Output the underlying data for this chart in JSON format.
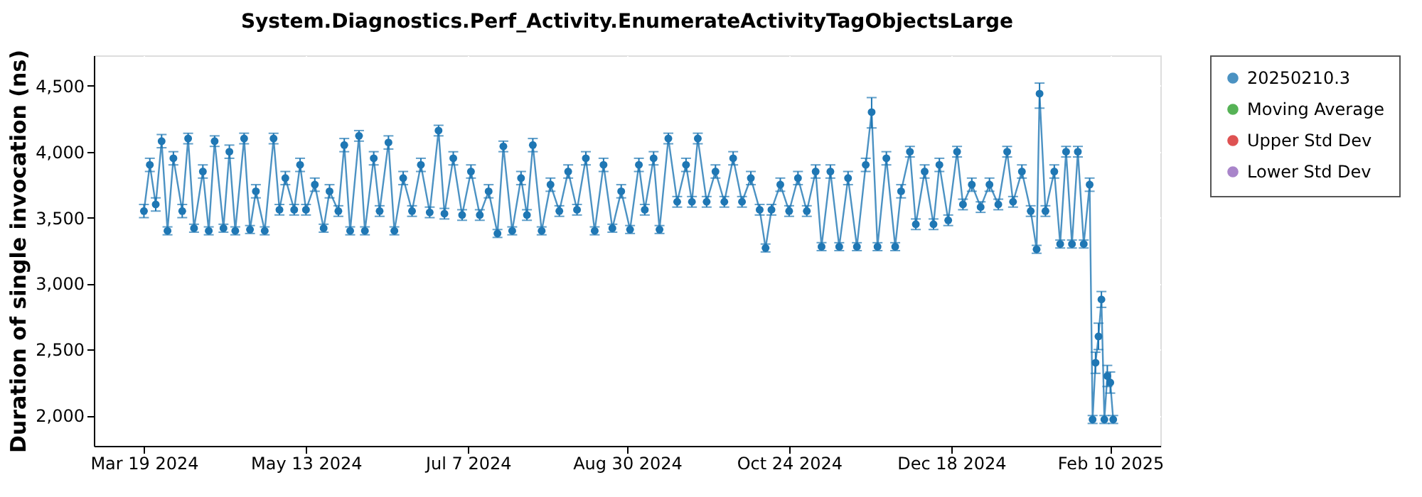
{
  "chart_data": {
    "type": "line",
    "title": "System.Diagnostics.Perf_Activity.EnumerateActivityTagObjectsLarge",
    "ylabel": "Duration of single invocation (ns)",
    "x": [
      "2024-03-19",
      "2024-03-21",
      "2024-03-23",
      "2024-03-25",
      "2024-03-27",
      "2024-03-29",
      "2024-04-01",
      "2024-04-03",
      "2024-04-05",
      "2024-04-08",
      "2024-04-10",
      "2024-04-12",
      "2024-04-15",
      "2024-04-17",
      "2024-04-19",
      "2024-04-22",
      "2024-04-24",
      "2024-04-26",
      "2024-04-29",
      "2024-05-02",
      "2024-05-04",
      "2024-05-06",
      "2024-05-09",
      "2024-05-11",
      "2024-05-13",
      "2024-05-16",
      "2024-05-19",
      "2024-05-21",
      "2024-05-24",
      "2024-05-26",
      "2024-05-28",
      "2024-05-31",
      "2024-06-02",
      "2024-06-05",
      "2024-06-07",
      "2024-06-10",
      "2024-06-12",
      "2024-06-15",
      "2024-06-18",
      "2024-06-21",
      "2024-06-24",
      "2024-06-27",
      "2024-06-29",
      "2024-07-02",
      "2024-07-05",
      "2024-07-08",
      "2024-07-11",
      "2024-07-14",
      "2024-07-17",
      "2024-07-19",
      "2024-07-22",
      "2024-07-25",
      "2024-07-27",
      "2024-07-29",
      "2024-08-01",
      "2024-08-04",
      "2024-08-07",
      "2024-08-10",
      "2024-08-13",
      "2024-08-16",
      "2024-08-19",
      "2024-08-22",
      "2024-08-25",
      "2024-08-28",
      "2024-08-31",
      "2024-09-03",
      "2024-09-05",
      "2024-09-08",
      "2024-09-10",
      "2024-09-13",
      "2024-09-16",
      "2024-09-19",
      "2024-09-21",
      "2024-09-23",
      "2024-09-26",
      "2024-09-29",
      "2024-10-02",
      "2024-10-05",
      "2024-10-08",
      "2024-10-11",
      "2024-10-14",
      "2024-10-16",
      "2024-10-18",
      "2024-10-21",
      "2024-10-24",
      "2024-10-27",
      "2024-10-30",
      "2024-11-02",
      "2024-11-04",
      "2024-11-07",
      "2024-11-10",
      "2024-11-13",
      "2024-11-16",
      "2024-11-19",
      "2024-11-21",
      "2024-11-23",
      "2024-11-26",
      "2024-11-29",
      "2024-12-01",
      "2024-12-04",
      "2024-12-06",
      "2024-12-09",
      "2024-12-12",
      "2024-12-14",
      "2024-12-17",
      "2024-12-20",
      "2024-12-22",
      "2024-12-25",
      "2024-12-28",
      "2024-12-31",
      "2025-01-03",
      "2025-01-06",
      "2025-01-08",
      "2025-01-11",
      "2025-01-14",
      "2025-01-16",
      "2025-01-17",
      "2025-01-19",
      "2025-01-22",
      "2025-01-24",
      "2025-01-26",
      "2025-01-28",
      "2025-01-30",
      "2025-02-01",
      "2025-02-03",
      "2025-02-04",
      "2025-02-05",
      "2025-02-06",
      "2025-02-07",
      "2025-02-08",
      "2025-02-09",
      "2025-02-10",
      "2025-02-11"
    ],
    "series": [
      {
        "name": "20250210.3",
        "color": "#1f77b4",
        "values": [
          3550,
          3900,
          3600,
          4080,
          3400,
          3950,
          3550,
          4100,
          3420,
          3850,
          3400,
          4080,
          3420,
          4000,
          3400,
          4100,
          3410,
          3700,
          3400,
          4100,
          3560,
          3800,
          3560,
          3900,
          3560,
          3750,
          3420,
          3700,
          3550,
          4050,
          3400,
          4120,
          3400,
          3950,
          3550,
          4070,
          3400,
          3800,
          3550,
          3900,
          3540,
          4160,
          3530,
          3950,
          3520,
          3850,
          3520,
          3700,
          3380,
          4040,
          3400,
          3800,
          3520,
          4050,
          3400,
          3750,
          3550,
          3850,
          3560,
          3950,
          3400,
          3900,
          3420,
          3700,
          3410,
          3900,
          3560,
          3950,
          3410,
          4100,
          3620,
          3900,
          3620,
          4100,
          3620,
          3850,
          3620,
          3950,
          3620,
          3800,
          3560,
          3270,
          3560,
          3750,
          3550,
          3800,
          3550,
          3850,
          3280,
          3850,
          3280,
          3800,
          3280,
          3900,
          4300,
          3280,
          3950,
          3280,
          3700,
          4000,
          3450,
          3850,
          3450,
          3900,
          3480,
          4000,
          3600,
          3750,
          3580,
          3750,
          3600,
          4000,
          3620,
          3850,
          3550,
          3260,
          4440,
          3550,
          3850,
          3300,
          4000,
          3300,
          4000,
          3300,
          3750,
          1970,
          2400,
          2600,
          2880,
          1970,
          2300,
          2250,
          1970
        ],
        "errors": [
          50,
          50,
          50,
          50,
          30,
          50,
          50,
          40,
          30,
          50,
          30,
          40,
          30,
          50,
          30,
          40,
          30,
          50,
          30,
          40,
          40,
          50,
          40,
          50,
          40,
          50,
          30,
          50,
          40,
          50,
          30,
          40,
          30,
          50,
          40,
          50,
          30,
          50,
          40,
          50,
          40,
          40,
          40,
          50,
          40,
          50,
          40,
          50,
          30,
          40,
          30,
          50,
          40,
          50,
          30,
          50,
          40,
          50,
          40,
          50,
          30,
          50,
          30,
          50,
          30,
          50,
          40,
          50,
          30,
          40,
          40,
          50,
          40,
          40,
          40,
          50,
          40,
          50,
          40,
          50,
          40,
          30,
          40,
          50,
          40,
          50,
          40,
          50,
          30,
          50,
          30,
          50,
          30,
          50,
          [
            4180,
            4410
          ],
          30,
          50,
          30,
          50,
          40,
          40,
          50,
          40,
          50,
          40,
          40,
          40,
          50,
          40,
          50,
          40,
          40,
          40,
          50,
          40,
          30,
          [
            4330,
            4520
          ],
          40,
          50,
          30,
          40,
          30,
          40,
          30,
          50,
          30,
          80,
          100,
          60,
          30,
          80,
          80,
          30
        ]
      },
      {
        "name": "Moving Average",
        "color": "#2ca02c",
        "values": [
          null,
          null,
          null,
          null,
          null,
          null,
          null,
          null,
          null,
          null,
          null,
          null,
          null,
          null,
          null,
          null,
          null,
          null,
          null,
          null,
          null,
          null,
          null,
          null,
          null,
          null,
          null,
          null,
          null,
          null,
          null,
          null,
          null,
          null,
          null,
          null,
          null,
          null,
          null,
          null,
          null,
          null,
          null,
          null,
          null,
          null,
          null,
          null,
          null,
          null,
          null,
          null,
          null,
          null,
          null,
          null,
          null,
          null,
          null,
          null,
          null,
          null,
          null,
          null,
          null,
          null,
          null,
          null,
          null,
          null,
          null,
          null,
          null,
          null,
          null,
          null,
          null,
          null,
          null,
          null,
          null,
          null,
          null,
          null,
          null,
          null,
          null,
          null,
          null,
          null,
          null,
          null,
          null,
          null,
          null,
          null,
          null,
          null,
          null,
          null,
          null,
          null,
          null,
          null,
          null,
          null,
          null,
          null,
          null,
          null,
          null,
          null,
          null,
          null,
          null,
          null,
          null,
          null,
          null,
          null,
          null,
          null,
          null,
          null,
          null,
          null,
          null,
          null,
          null,
          null,
          null,
          null,
          null
        ]
      },
      {
        "name": "Upper Std Dev",
        "color": "#d62728",
        "values": [
          null,
          null,
          null,
          null,
          null,
          null,
          null,
          null,
          null,
          null,
          null,
          null,
          null,
          null,
          null,
          null,
          null,
          null,
          null,
          null,
          null,
          null,
          null,
          null,
          null,
          null,
          null,
          null,
          null,
          null,
          null,
          null,
          null,
          null,
          null,
          null,
          null,
          null,
          null,
          null,
          null,
          null,
          null,
          null,
          null,
          null,
          null,
          null,
          null,
          null,
          null,
          null,
          null,
          null,
          null,
          null,
          null,
          null,
          null,
          null,
          null,
          null,
          null,
          null,
          null,
          null,
          null,
          null,
          null,
          null,
          null,
          null,
          null,
          null,
          null,
          null,
          null,
          null,
          null,
          null,
          null,
          null,
          null,
          null,
          null,
          null,
          null,
          null,
          null,
          null,
          null,
          null,
          null,
          null,
          null,
          null,
          null,
          null,
          null,
          null,
          null,
          null,
          null,
          null,
          null,
          null,
          null,
          null,
          null,
          null,
          null,
          null,
          null,
          null,
          null,
          null,
          null,
          null,
          null,
          null,
          null,
          null,
          null,
          null,
          null,
          null,
          null,
          null,
          null,
          null,
          null,
          null,
          null
        ]
      },
      {
        "name": "Lower Std Dev",
        "color": "#9467bd",
        "values": [
          null,
          null,
          null,
          null,
          null,
          null,
          null,
          null,
          null,
          null,
          null,
          null,
          null,
          null,
          null,
          null,
          null,
          null,
          null,
          null,
          null,
          null,
          null,
          null,
          null,
          null,
          null,
          null,
          null,
          null,
          null,
          null,
          null,
          null,
          null,
          null,
          null,
          null,
          null,
          null,
          null,
          null,
          null,
          null,
          null,
          null,
          null,
          null,
          null,
          null,
          null,
          null,
          null,
          null,
          null,
          null,
          null,
          null,
          null,
          null,
          null,
          null,
          null,
          null,
          null,
          null,
          null,
          null,
          null,
          null,
          null,
          null,
          null,
          null,
          null,
          null,
          null,
          null,
          null,
          null,
          null,
          null,
          null,
          null,
          null,
          null,
          null,
          null,
          null,
          null,
          null,
          null,
          null,
          null,
          null,
          null,
          null,
          null,
          null,
          null,
          null,
          null,
          null,
          null,
          null,
          null,
          null,
          null,
          null,
          null,
          null,
          null,
          null,
          null,
          null,
          null,
          null,
          null,
          null,
          null,
          null,
          null,
          null,
          null,
          null,
          null,
          null,
          null,
          null,
          null,
          null,
          null,
          null
        ]
      }
    ],
    "xlim": [
      "2024-03-02",
      "2025-02-27"
    ],
    "xticks": [
      {
        "value": "2024-03-19",
        "label": "Mar 19 2024"
      },
      {
        "value": "2024-05-13",
        "label": "May 13 2024"
      },
      {
        "value": "2024-07-07",
        "label": "Jul 7 2024"
      },
      {
        "value": "2024-08-30",
        "label": "Aug 30 2024"
      },
      {
        "value": "2024-10-24",
        "label": "Oct 24 2024"
      },
      {
        "value": "2024-12-18",
        "label": "Dec 18 2024"
      },
      {
        "value": "2025-02-10",
        "label": "Feb 10 2025"
      }
    ],
    "ylim": [
      1770,
      4730
    ],
    "yticks": [
      {
        "value": 2000,
        "label": "2,000"
      },
      {
        "value": 2500,
        "label": "2,500"
      },
      {
        "value": 3000,
        "label": "3,000"
      },
      {
        "value": 3500,
        "label": "3,500"
      },
      {
        "value": 4000,
        "label": "4,000"
      },
      {
        "value": 4500,
        "label": "4,500"
      }
    ],
    "grid": true,
    "legend": "right",
    "marker": "circle",
    "line_style": "solid"
  }
}
